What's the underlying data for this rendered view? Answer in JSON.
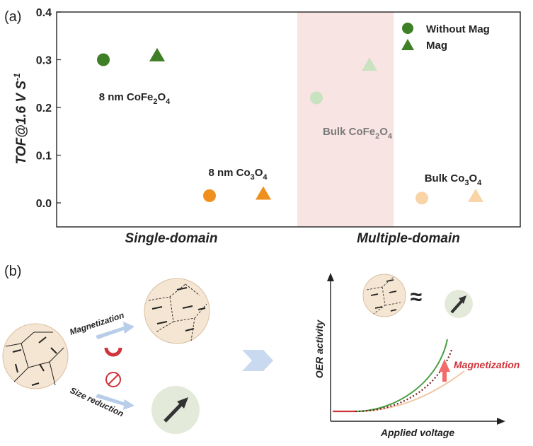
{
  "panel_a": {
    "label": "(a)"
  },
  "panel_b": {
    "label": "(b)"
  },
  "chart_data": {
    "type": "scatter",
    "ylabel_main": "TOF@1.6 V S",
    "ylabel_sup": "-1",
    "ylim": [
      0.0,
      0.4
    ],
    "yticks": [
      "0.0",
      "0.1",
      "0.2",
      "0.3",
      "0.4"
    ],
    "group_labels": [
      "Single-domain",
      "Multiple-domain"
    ],
    "highlight": "Multiple-domain",
    "legend": {
      "position": "top-right",
      "entries": [
        {
          "label": "Without Mag",
          "marker": "circle",
          "color": "#3f7f26"
        },
        {
          "label": "Mag",
          "marker": "triangle",
          "color": "#3f7f26"
        }
      ]
    },
    "points": [
      {
        "material": "8 nm CoFe2O4",
        "series": "Without Mag",
        "slot": 1,
        "y": 0.3,
        "color": "#3f7f26"
      },
      {
        "material": "8 nm CoFe2O4",
        "series": "Mag",
        "slot": 2,
        "y": 0.31,
        "color": "#3f7f26"
      },
      {
        "material": "8 nm Co3O4",
        "series": "Without Mag",
        "slot": 3,
        "y": 0.015,
        "color": "#f0901c"
      },
      {
        "material": "8 nm Co3O4",
        "series": "Mag",
        "slot": 4,
        "y": 0.02,
        "color": "#f0901c"
      },
      {
        "material": "Bulk CoFe2O4",
        "series": "Without Mag",
        "slot": 5,
        "y": 0.22,
        "color": "#c9e2bf"
      },
      {
        "material": "Bulk CoFe2O4",
        "series": "Mag",
        "slot": 6,
        "y": 0.29,
        "color": "#c9e2bf"
      },
      {
        "material": "Bulk Co3O4",
        "series": "Without Mag",
        "slot": 7,
        "y": 0.01,
        "color": "#f8d4a6"
      },
      {
        "material": "Bulk Co3O4",
        "series": "Mag",
        "slot": 8,
        "y": 0.015,
        "color": "#f8d4a6"
      }
    ],
    "annotations": [
      {
        "pre": "8 nm CoFe",
        "sub1": "2",
        "mid": "O",
        "sub2": "4",
        "color": "#222222"
      },
      {
        "pre": "8 nm Co",
        "sub1": "3",
        "mid": "O",
        "sub2": "4",
        "color": "#222222"
      },
      {
        "pre": "Bulk CoFe",
        "sub1": "2",
        "mid": "O",
        "sub2": "4",
        "color": "#7a7a7a"
      },
      {
        "pre": "Bulk Co",
        "sub1": "3",
        "mid": "O",
        "sub2": "4",
        "color": "#222222"
      }
    ]
  },
  "schematic": {
    "magnetization_label": "Magnetization",
    "size_reduction_label": "Size reduction",
    "approx_symbol": "≈",
    "curve_plot": {
      "ylabel": "OER activity",
      "xlabel": "Applied voltage",
      "arrow_label": "Magnetization"
    }
  }
}
